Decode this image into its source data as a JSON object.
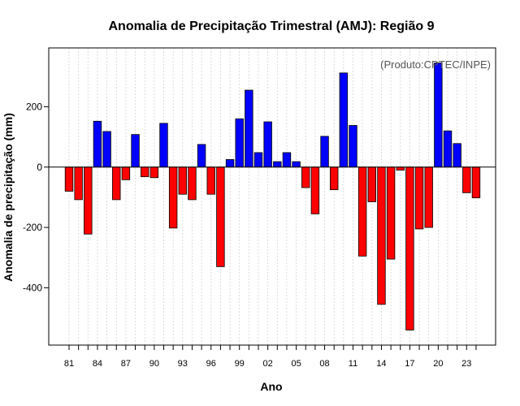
{
  "chart_data": {
    "type": "bar",
    "title": "Anomalia de Precipitação Trimestral (AMJ): Região 9",
    "xlabel": "Ano",
    "ylabel": "Anomalia de precipitação (mm)",
    "credit": "(Produto:CPTEC/INPE)",
    "ylim": [
      -590,
      395
    ],
    "y_ticks": [
      200,
      0,
      -200,
      -400
    ],
    "y_tick_labels": [
      "200",
      "0",
      "-200",
      "-400"
    ],
    "x_tick_labels": [
      {
        "label": "81",
        "index": 0
      },
      {
        "label": "84",
        "index": 3
      },
      {
        "label": "87",
        "index": 6
      },
      {
        "label": "90",
        "index": 9
      },
      {
        "label": "93",
        "index": 12
      },
      {
        "label": "96",
        "index": 15
      },
      {
        "label": "99",
        "index": 18
      },
      {
        "label": "02",
        "index": 21
      },
      {
        "label": "05",
        "index": 24
      },
      {
        "label": "08",
        "index": 27
      },
      {
        "label": "11",
        "index": 30
      },
      {
        "label": "14",
        "index": 33
      },
      {
        "label": "17",
        "index": 36
      },
      {
        "label": "20",
        "index": 39
      },
      {
        "label": "23",
        "index": 42
      }
    ],
    "categories": [
      "1981",
      "1982",
      "1983",
      "1984",
      "1985",
      "1986",
      "1987",
      "1988",
      "1989",
      "1990",
      "1991",
      "1992",
      "1993",
      "1994",
      "1995",
      "1996",
      "1997",
      "1998",
      "1999",
      "2000",
      "2001",
      "2002",
      "2003",
      "2004",
      "2005",
      "2006",
      "2007",
      "2008",
      "2009",
      "2010",
      "2011",
      "2012",
      "2013",
      "2014",
      "2015",
      "2016",
      "2017",
      "2018",
      "2019",
      "2020",
      "2021",
      "2022",
      "2023",
      "2024"
    ],
    "values": [
      -80,
      -108,
      -222,
      152,
      118,
      -108,
      -42,
      108,
      -32,
      -35,
      145,
      -202,
      -90,
      -108,
      75,
      -90,
      -330,
      25,
      160,
      255,
      48,
      150,
      18,
      48,
      18,
      -68,
      -155,
      102,
      -75,
      312,
      138,
      -295,
      -115,
      -455,
      -305,
      -10,
      -540,
      -205,
      -200,
      345,
      120,
      78,
      -85,
      -102
    ],
    "colors": {
      "positive": "#0000ff",
      "negative": "#ff0000",
      "outline": "#000000",
      "grid": "#d3d3d3"
    }
  }
}
